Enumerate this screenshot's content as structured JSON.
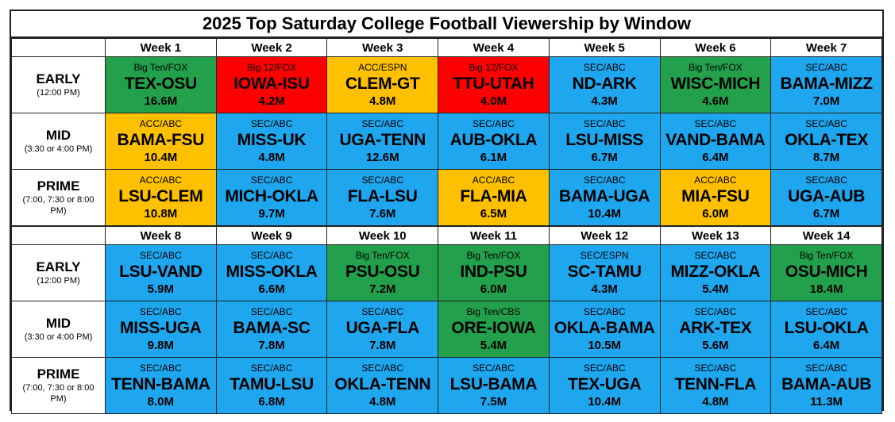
{
  "title": "2025 Top Saturday College Football Viewership by Window",
  "colors": {
    "SEC": "#1ea6ee",
    "ACC": "#ffc000",
    "BIG": "#22a04b",
    "B12": "#ff0000"
  },
  "windows": [
    {
      "name": "EARLY",
      "time": "(12:00 PM)"
    },
    {
      "name": "MID",
      "time": "(3:30 or 4:00 PM)"
    },
    {
      "name": "PRIME",
      "time": "(7:00, 7:30 or 8:00 PM)"
    }
  ],
  "blocks": [
    {
      "weeks": [
        "Week 1",
        "Week 2",
        "Week 3",
        "Week 4",
        "Week 5",
        "Week 6",
        "Week 7"
      ],
      "rows": [
        [
          {
            "net": "Big Ten/FOX",
            "match": "TEX-OSU",
            "views": "16.6M",
            "color": "BIG"
          },
          {
            "net": "Big 12/FOX",
            "match": "IOWA-ISU",
            "views": "4.2M",
            "color": "B12"
          },
          {
            "net": "ACC/ESPN",
            "match": "CLEM-GT",
            "views": "4.8M",
            "color": "ACC"
          },
          {
            "net": "Big 12/FOX",
            "match": "TTU-UTAH",
            "views": "4.0M",
            "color": "B12"
          },
          {
            "net": "SEC/ABC",
            "match": "ND-ARK",
            "views": "4.3M",
            "color": "SEC"
          },
          {
            "net": "Big Ten/FOX",
            "match": "WISC-MICH",
            "views": "4.6M",
            "color": "BIG"
          },
          {
            "net": "SEC/ABC",
            "match": "BAMA-MIZZ",
            "views": "7.0M",
            "color": "SEC"
          }
        ],
        [
          {
            "net": "ACC/ABC",
            "match": "BAMA-FSU",
            "views": "10.4M",
            "color": "ACC"
          },
          {
            "net": "SEC/ABC",
            "match": "MISS-UK",
            "views": "4.8M",
            "color": "SEC"
          },
          {
            "net": "SEC/ABC",
            "match": "UGA-TENN",
            "views": "12.6M",
            "color": "SEC"
          },
          {
            "net": "SEC/ABC",
            "match": "AUB-OKLA",
            "views": "6.1M",
            "color": "SEC"
          },
          {
            "net": "SEC/ABC",
            "match": "LSU-MISS",
            "views": "6.7M",
            "color": "SEC"
          },
          {
            "net": "SEC/ABC",
            "match": "VAND-BAMA",
            "views": "6.4M",
            "color": "SEC"
          },
          {
            "net": "SEC/ABC",
            "match": "OKLA-TEX",
            "views": "8.7M",
            "color": "SEC"
          }
        ],
        [
          {
            "net": "ACC/ABC",
            "match": "LSU-CLEM",
            "views": "10.8M",
            "color": "ACC"
          },
          {
            "net": "SEC/ABC",
            "match": "MICH-OKLA",
            "views": "9.7M",
            "color": "SEC"
          },
          {
            "net": "SEC/ABC",
            "match": "FLA-LSU",
            "views": "7.6M",
            "color": "SEC"
          },
          {
            "net": "ACC/ABC",
            "match": "FLA-MIA",
            "views": "6.5M",
            "color": "ACC"
          },
          {
            "net": "SEC/ABC",
            "match": "BAMA-UGA",
            "views": "10.4M",
            "color": "SEC"
          },
          {
            "net": "ACC/ABC",
            "match": "MIA-FSU",
            "views": "6.0M",
            "color": "ACC"
          },
          {
            "net": "SEC/ABC",
            "match": "UGA-AUB",
            "views": "6.7M",
            "color": "SEC"
          }
        ]
      ]
    },
    {
      "weeks": [
        "Week 8",
        "Week 9",
        "Week 10",
        "Week 11",
        "Week 12",
        "Week 13",
        "Week 14"
      ],
      "rows": [
        [
          {
            "net": "SEC/ABC",
            "match": "LSU-VAND",
            "views": "5.9M",
            "color": "SEC"
          },
          {
            "net": "SEC/ABC",
            "match": "MISS-OKLA",
            "views": "6.6M",
            "color": "SEC"
          },
          {
            "net": "Big Ten/FOX",
            "match": "PSU-OSU",
            "views": "7.2M",
            "color": "BIG"
          },
          {
            "net": "Big Ten/FOX",
            "match": "IND-PSU",
            "views": "6.0M",
            "color": "BIG"
          },
          {
            "net": "SEC/ESPN",
            "match": "SC-TAMU",
            "views": "4.3M",
            "color": "SEC"
          },
          {
            "net": "SEC/ABC",
            "match": "MIZZ-OKLA",
            "views": "5.4M",
            "color": "SEC"
          },
          {
            "net": "Big Ten/FOX",
            "match": "OSU-MICH",
            "views": "18.4M",
            "color": "BIG"
          }
        ],
        [
          {
            "net": "SEC/ABC",
            "match": "MISS-UGA",
            "views": "9.8M",
            "color": "SEC"
          },
          {
            "net": "SEC/ABC",
            "match": "BAMA-SC",
            "views": "7.8M",
            "color": "SEC"
          },
          {
            "net": "SEC/ABC",
            "match": "UGA-FLA",
            "views": "7.8M",
            "color": "SEC"
          },
          {
            "net": "Big Ten/CBS",
            "match": "ORE-IOWA",
            "views": "5.4M",
            "color": "BIG"
          },
          {
            "net": "SEC/ABC",
            "match": "OKLA-BAMA",
            "views": "10.5M",
            "color": "SEC"
          },
          {
            "net": "SEC/ABC",
            "match": "ARK-TEX",
            "views": "5.6M",
            "color": "SEC"
          },
          {
            "net": "SEC/ABC",
            "match": "LSU-OKLA",
            "views": "6.4M",
            "color": "SEC"
          }
        ],
        [
          {
            "net": "SEC/ABC",
            "match": "TENN-BAMA",
            "views": "8.0M",
            "color": "SEC"
          },
          {
            "net": "SEC/ABC",
            "match": "TAMU-LSU",
            "views": "6.8M",
            "color": "SEC"
          },
          {
            "net": "SEC/ABC",
            "match": "OKLA-TENN",
            "views": "4.8M",
            "color": "SEC"
          },
          {
            "net": "SEC/ABC",
            "match": "LSU-BAMA",
            "views": "7.5M",
            "color": "SEC"
          },
          {
            "net": "SEC/ABC",
            "match": "TEX-UGA",
            "views": "10.4M",
            "color": "SEC"
          },
          {
            "net": "SEC/ABC",
            "match": "TENN-FLA",
            "views": "4.8M",
            "color": "SEC"
          },
          {
            "net": "SEC/ABC",
            "match": "BAMA-AUB",
            "views": "11.3M",
            "color": "SEC"
          }
        ]
      ]
    }
  ]
}
